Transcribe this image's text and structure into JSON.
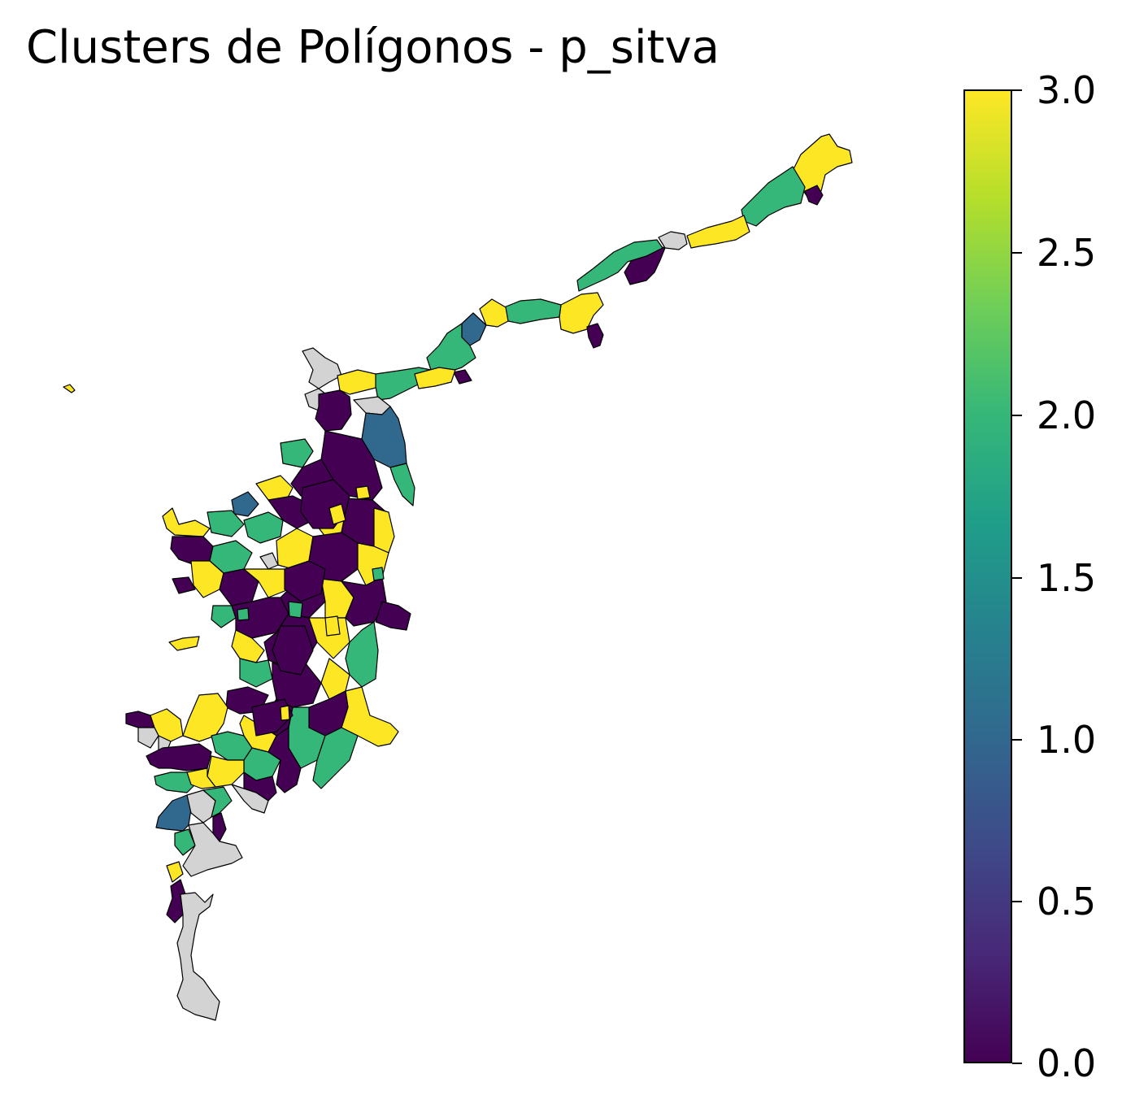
{
  "title": "Clusters de Polígonos - p_sitva",
  "colormap": "viridis",
  "missing_color": "#d3d3d3",
  "cluster_colors": {
    "0": "#440154",
    "1": "#31688e",
    "2": "#35b779",
    "3": "#fde725"
  },
  "colorbar": {
    "min": 0.0,
    "max": 3.0,
    "ticks": [
      "0.0",
      "0.5",
      "1.0",
      "1.5",
      "2.0",
      "2.5",
      "3.0"
    ],
    "gradient": [
      "#440154",
      "#482878",
      "#3e4a89",
      "#31688e",
      "#26828e",
      "#1f9e89",
      "#35b779",
      "#6ece58",
      "#b5de2b",
      "#fde725"
    ]
  }
}
